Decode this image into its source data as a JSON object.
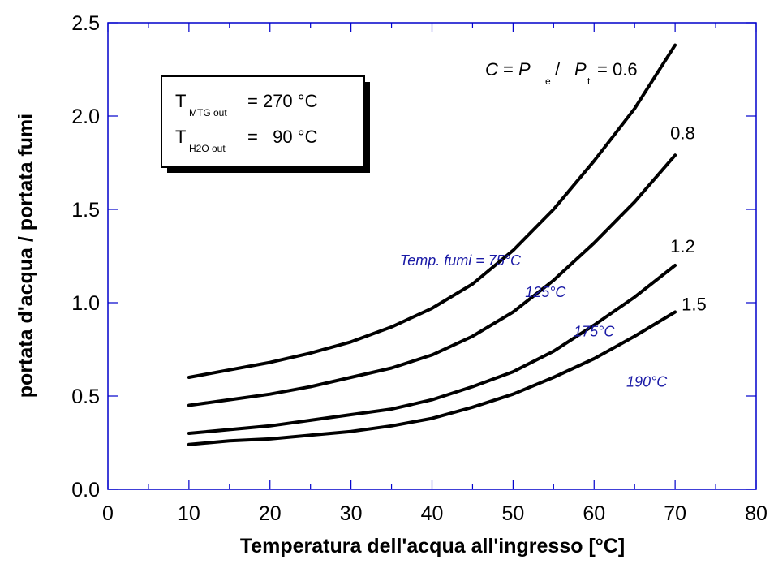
{
  "chart_data": {
    "type": "line",
    "xlabel": "Temperatura dell'acqua all'ingresso [°C]",
    "ylabel": "portata d'acqua / portata fumi",
    "xlim": [
      0,
      80
    ],
    "ylim": [
      0,
      2.5
    ],
    "xticks": [
      "0",
      "10",
      "20",
      "30",
      "40",
      "50",
      "60",
      "70",
      "80"
    ],
    "yticks": [
      "0.0",
      "0.5",
      "1.0",
      "1.5",
      "2.0",
      "2.5"
    ],
    "formula": {
      "c": "C",
      "eq": " = ",
      "p": "P",
      "sub_e": "e",
      "slash": " / ",
      "sub_t": "t",
      "value_prefix": "= ",
      "first_value": "0.6"
    },
    "series": [
      {
        "name": "0.6",
        "temp_label": "Temp. fumi = 75°C",
        "x": [
          10,
          15,
          20,
          25,
          30,
          35,
          40,
          45,
          50,
          55,
          60,
          65,
          70
        ],
        "y": [
          0.6,
          0.64,
          0.68,
          0.73,
          0.79,
          0.87,
          0.97,
          1.1,
          1.28,
          1.5,
          1.76,
          2.04,
          2.38
        ]
      },
      {
        "name": "0.8",
        "temp_label": "125°C",
        "x": [
          10,
          15,
          20,
          25,
          30,
          35,
          40,
          45,
          50,
          55,
          60,
          65,
          70
        ],
        "y": [
          0.45,
          0.48,
          0.51,
          0.55,
          0.6,
          0.65,
          0.72,
          0.82,
          0.95,
          1.12,
          1.32,
          1.54,
          1.79
        ]
      },
      {
        "name": "1.2",
        "temp_label": "175°C",
        "x": [
          10,
          15,
          20,
          25,
          30,
          35,
          40,
          45,
          50,
          55,
          60,
          65,
          70
        ],
        "y": [
          0.3,
          0.32,
          0.34,
          0.37,
          0.4,
          0.43,
          0.48,
          0.55,
          0.63,
          0.74,
          0.88,
          1.03,
          1.2
        ]
      },
      {
        "name": "1.5",
        "temp_label": "190°C",
        "x": [
          10,
          15,
          20,
          25,
          30,
          35,
          40,
          45,
          50,
          55,
          60,
          65,
          70
        ],
        "y": [
          0.24,
          0.26,
          0.27,
          0.29,
          0.31,
          0.34,
          0.38,
          0.44,
          0.51,
          0.6,
          0.7,
          0.82,
          0.95
        ]
      }
    ],
    "info_box": {
      "line1_main": "T",
      "line1_sub": "MTG out",
      "line1_value": "= 270 °C",
      "line2_main": "T",
      "line2_sub": "H2O out",
      "line2_value": "=   90 °C"
    },
    "colors": {
      "axis": "#0000cc",
      "curve": "#000000",
      "temp_label": "#1a1aa6"
    }
  }
}
